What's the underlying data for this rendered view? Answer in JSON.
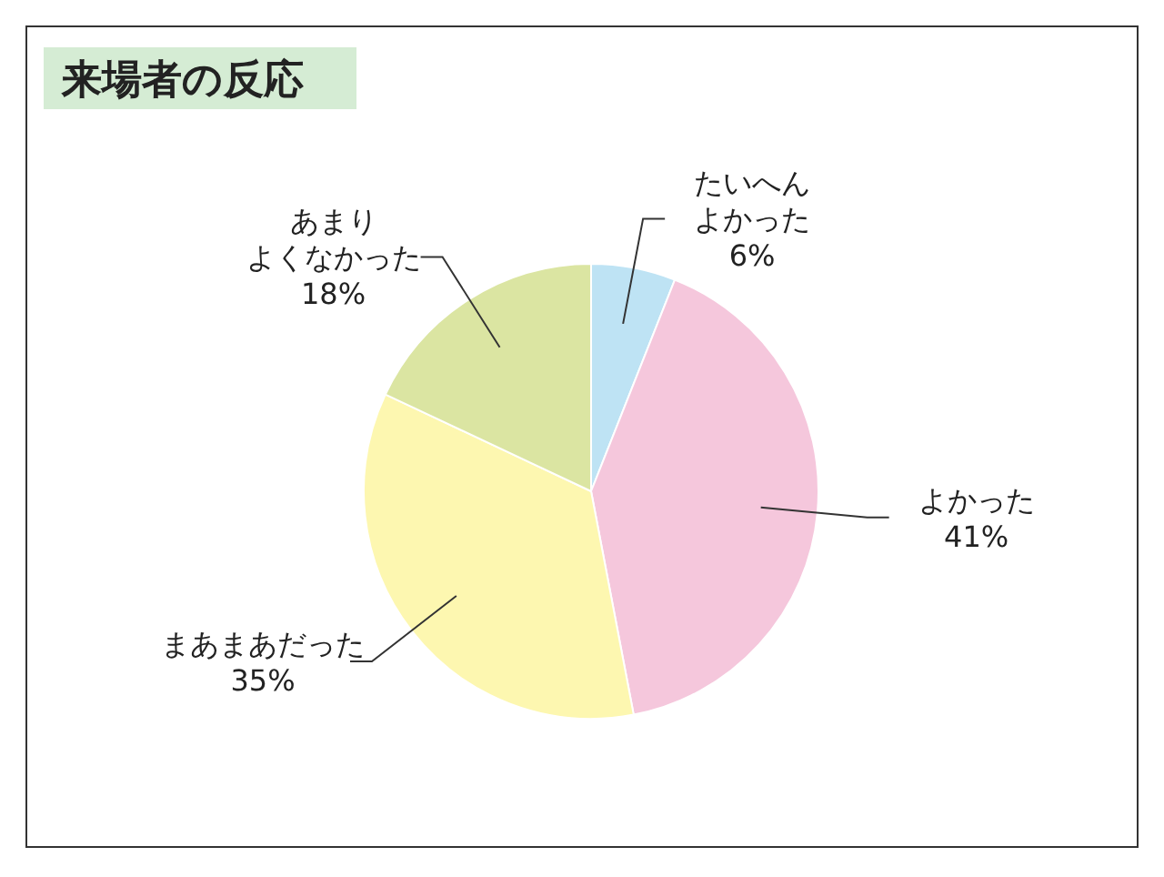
{
  "chart_data": {
    "type": "pie",
    "title": "来場者の反応",
    "categories": [
      "たいへんよかった",
      "よかった",
      "まあまあだった",
      "あまりよくなかった"
    ],
    "values": [
      6,
      41,
      35,
      18
    ],
    "value_labels": [
      "6%",
      "41%",
      "35%",
      "18%"
    ],
    "colors": [
      "#bee3f4",
      "#f5c7dc",
      "#fdf7b0",
      "#dbe5a2"
    ]
  }
}
